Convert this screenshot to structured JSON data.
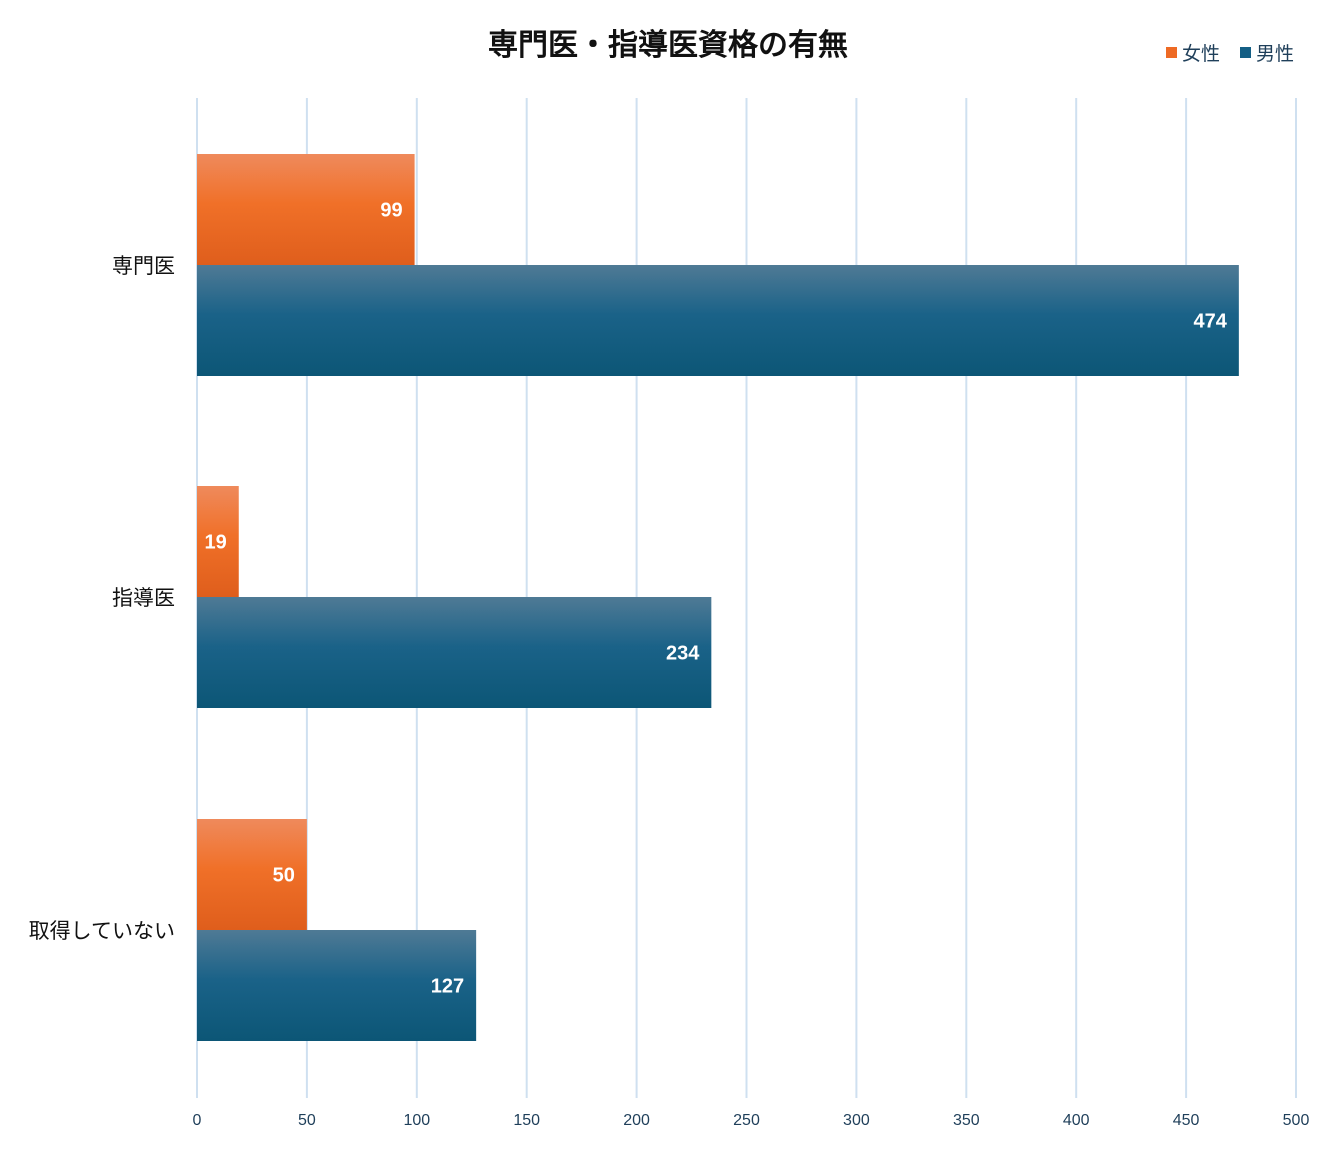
{
  "chart_data": {
    "type": "bar",
    "orientation": "horizontal",
    "title": "専門医・指導医資格の有無",
    "categories": [
      "専門医",
      "指導医",
      "取得していない"
    ],
    "series": [
      {
        "name": "女性",
        "values": [
          99,
          19,
          50
        ],
        "color": "#ee6a24"
      },
      {
        "name": "男性",
        "values": [
          474,
          234,
          127
        ],
        "color": "#145f85"
      }
    ],
    "xlim": [
      0,
      500
    ],
    "x_ticks": [
      "0",
      "50",
      "100",
      "150",
      "200",
      "250",
      "300",
      "350",
      "400",
      "450",
      "500"
    ],
    "grid": true,
    "legend_position": "top-right",
    "data_labels": true
  }
}
